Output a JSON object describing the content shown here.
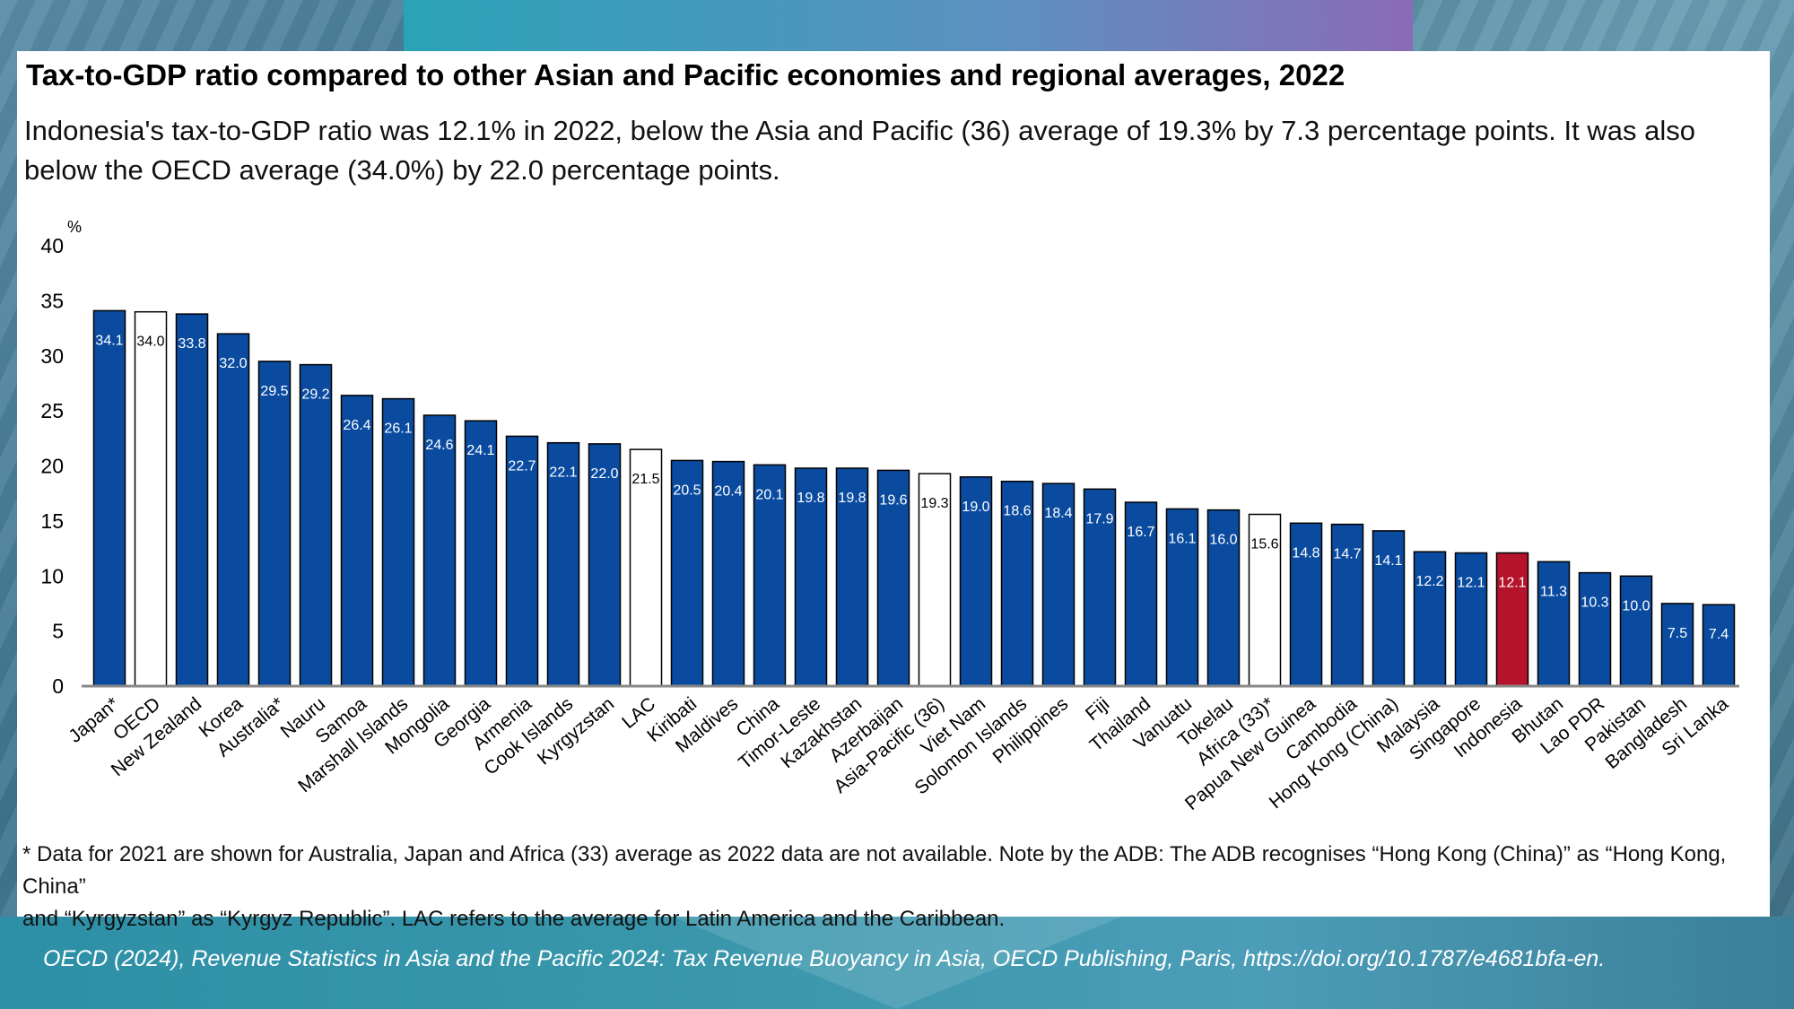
{
  "colors": {
    "bar_default": "#0a4ba0",
    "bar_average": "#ffffff",
    "bar_highlight": "#b5132b",
    "label_on_dark": "#ffffff",
    "label_on_light": "#000000"
  },
  "header": {
    "title": "Tax-to-GDP ratio compared to other Asian and Pacific economies and regional averages, 2022",
    "subtitle": "Indonesia's tax-to-GDP ratio was 12.1% in 2022, below the Asia and Pacific (36) average of 19.3% by 7.3 percentage points. It was also below the OECD average (34.0%) by 22.0 percentage points."
  },
  "chart_data": {
    "type": "bar",
    "ylabel": "%",
    "ylim": [
      0,
      40
    ],
    "yticks": [
      0,
      5,
      10,
      15,
      20,
      25,
      30,
      35,
      40
    ],
    "grid": false,
    "legend": "none",
    "categories": [
      "Japan*",
      "OECD",
      "New Zealand",
      "Korea",
      "Australia*",
      "Nauru",
      "Samoa",
      "Marshall Islands",
      "Mongolia",
      "Georgia",
      "Armenia",
      "Cook Islands",
      "Kyrgyzstan",
      "LAC",
      "Kiribati",
      "Maldives",
      "China",
      "Timor-Leste",
      "Kazakhstan",
      "Azerbaijan",
      "Asia-Pacific (36)",
      "Viet Nam",
      "Solomon Islands",
      "Philippines",
      "Fiji",
      "Thailand",
      "Vanuatu",
      "Tokelau",
      "Africa (33)*",
      "Papua New Guinea",
      "Cambodia",
      "Hong Kong (China)",
      "Malaysia",
      "Singapore",
      "Indonesia",
      "Bhutan",
      "Lao PDR",
      "Pakistan",
      "Bangladesh",
      "Sri Lanka"
    ],
    "values": [
      34.1,
      34.0,
      33.8,
      32.0,
      29.5,
      29.2,
      26.4,
      26.1,
      24.6,
      24.1,
      22.7,
      22.1,
      22.0,
      21.5,
      20.5,
      20.4,
      20.1,
      19.8,
      19.8,
      19.6,
      19.3,
      19.0,
      18.6,
      18.4,
      17.9,
      16.7,
      16.1,
      16.0,
      15.6,
      14.8,
      14.7,
      14.1,
      12.2,
      12.1,
      12.1,
      11.3,
      10.3,
      10.0,
      7.5,
      7.4
    ],
    "value_labels": [
      "34.1",
      "34.0",
      "33.8",
      "32.0",
      "29.5",
      "29.2",
      "26.4",
      "26.1",
      "24.6",
      "24.1",
      "22.7",
      "22.1",
      "22.0",
      "21.5",
      "20.5",
      "20.4",
      "20.1",
      "19.8",
      "19.8",
      "19.6",
      "19.3",
      "19.0",
      "18.6",
      "18.4",
      "17.9",
      "16.7",
      "16.1",
      "16.0",
      "15.6",
      "14.8",
      "14.7",
      "14.1",
      "12.2",
      "12.1",
      "12.1",
      "11.3",
      "10.3",
      "10.0",
      "7.5",
      "7.4"
    ],
    "bar_kind": [
      "country",
      "average",
      "country",
      "country",
      "country",
      "country",
      "country",
      "country",
      "country",
      "country",
      "country",
      "country",
      "country",
      "average",
      "country",
      "country",
      "country",
      "country",
      "country",
      "country",
      "average",
      "country",
      "country",
      "country",
      "country",
      "country",
      "country",
      "country",
      "average",
      "country",
      "country",
      "country",
      "country",
      "country",
      "highlight",
      "country",
      "country",
      "country",
      "country",
      "country"
    ]
  },
  "footnote": {
    "line1": "* Data for 2021 are shown for Australia, Japan and Africa (33) average as 2022 data are not available. Note by the ADB: The ADB recognises “Hong Kong (China)” as “Hong Kong, China”",
    "line2": "and “Kyrgyzstan” as “Kyrgyz Republic”. LAC refers to the average for Latin America and the Caribbean."
  },
  "citation": "OECD (2024), Revenue Statistics in Asia and the Pacific 2024: Tax Revenue Buoyancy in Asia, OECD Publishing, Paris, https://doi.org/10.1787/e4681bfa-en."
}
